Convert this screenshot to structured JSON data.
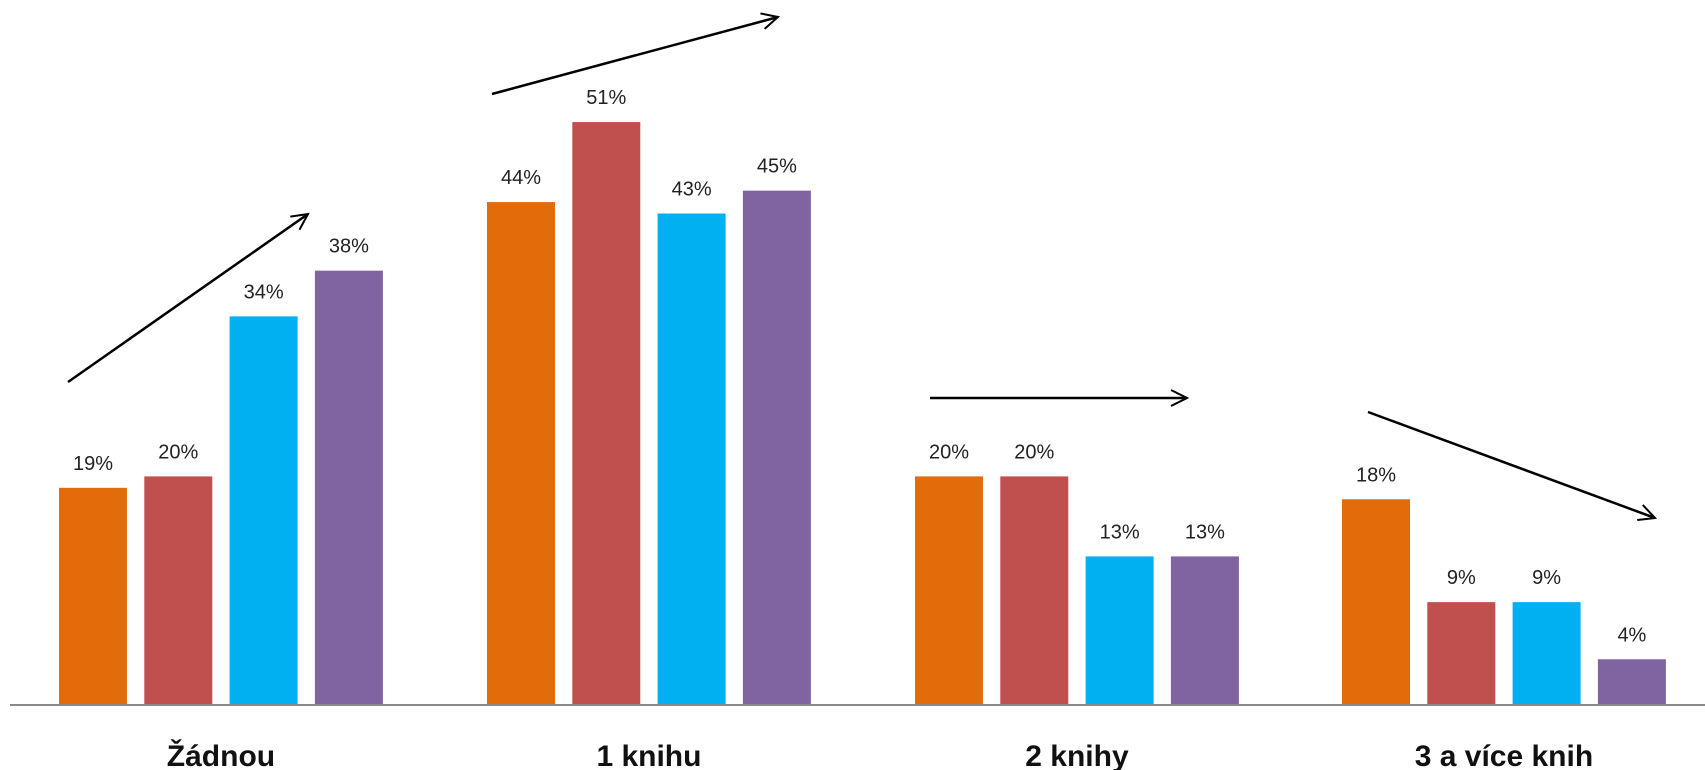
{
  "chart_data": {
    "type": "bar",
    "categories": [
      "Žádnou",
      "1 knihu",
      "2 knihy",
      "3 a více knih"
    ],
    "series": [
      {
        "values": [
          19,
          44,
          20,
          18
        ],
        "color": "#E36C0A"
      },
      {
        "values": [
          20,
          51,
          20,
          9
        ],
        "color": "#C0504D"
      },
      {
        "values": [
          34,
          43,
          13,
          9
        ],
        "color": "#00B0F0"
      },
      {
        "values": [
          38,
          45,
          13,
          4
        ],
        "color": "#8064A2"
      }
    ],
    "value_labels": [
      [
        "19%",
        "20%",
        "34%",
        "38%"
      ],
      [
        "44%",
        "51%",
        "43%",
        "45%"
      ],
      [
        "20%",
        "20%",
        "13%",
        "13%"
      ],
      [
        "18%",
        "9%",
        "9%",
        "4%"
      ]
    ],
    "ylim": [
      0,
      60
    ],
    "grid": false,
    "legend": "none",
    "trend_arrows": [
      "up",
      "up",
      "flat",
      "down"
    ]
  }
}
